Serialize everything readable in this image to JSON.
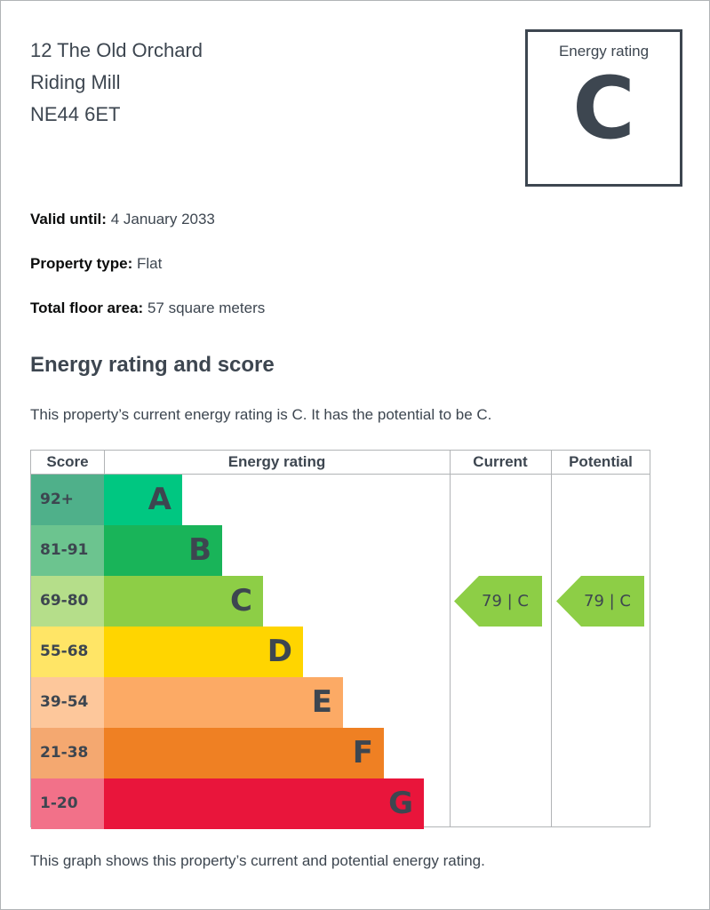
{
  "address": {
    "line1": "12 The Old Orchard",
    "line2": "Riding Mill",
    "line3": "NE44 6ET"
  },
  "rating_box": {
    "label": "Energy rating",
    "letter": "C"
  },
  "details": {
    "valid_label": "Valid until:",
    "valid_value": "4 January 2033",
    "type_label": "Property type:",
    "type_value": "Flat",
    "area_label": "Total floor area:",
    "area_value": "57 square meters"
  },
  "section_title": "Energy rating and score",
  "intro_text": "This property’s current energy rating is C. It has the potential to be C.",
  "graph": {
    "headers": {
      "score": "Score",
      "rating": "Energy rating",
      "current": "Current",
      "potential": "Potential"
    },
    "bands": [
      {
        "score": "92+",
        "letter": "A",
        "color": "#008054",
        "score_bg": "#4fb08a",
        "bar_color": "#00c781"
      },
      {
        "score": "81-91",
        "letter": "B",
        "color": "#19b459",
        "score_bg": "#6cc48f",
        "bar_color": "#19b459"
      },
      {
        "score": "69-80",
        "letter": "C",
        "color": "#8dce46",
        "score_bg": "#b5de8a",
        "bar_color": "#8dce46"
      },
      {
        "score": "55-68",
        "letter": "D",
        "color": "#ffd500",
        "score_bg": "#ffe566",
        "bar_color": "#ffd500"
      },
      {
        "score": "39-54",
        "letter": "E",
        "color": "#fcaa65",
        "score_bg": "#fdc79b",
        "bar_color": "#fcaa65"
      },
      {
        "score": "21-38",
        "letter": "F",
        "color": "#ef8023",
        "score_bg": "#f4a870",
        "bar_color": "#ef8023"
      },
      {
        "score": "1-20",
        "letter": "G",
        "color": "#e9153b",
        "score_bg": "#f27189",
        "bar_color": "#e9153b"
      }
    ],
    "current": {
      "label": "79 | C",
      "color": "#8dce46"
    },
    "potential": {
      "label": "79 | C",
      "color": "#8dce46"
    }
  },
  "footnote": "This graph shows this property’s current and potential energy rating."
}
